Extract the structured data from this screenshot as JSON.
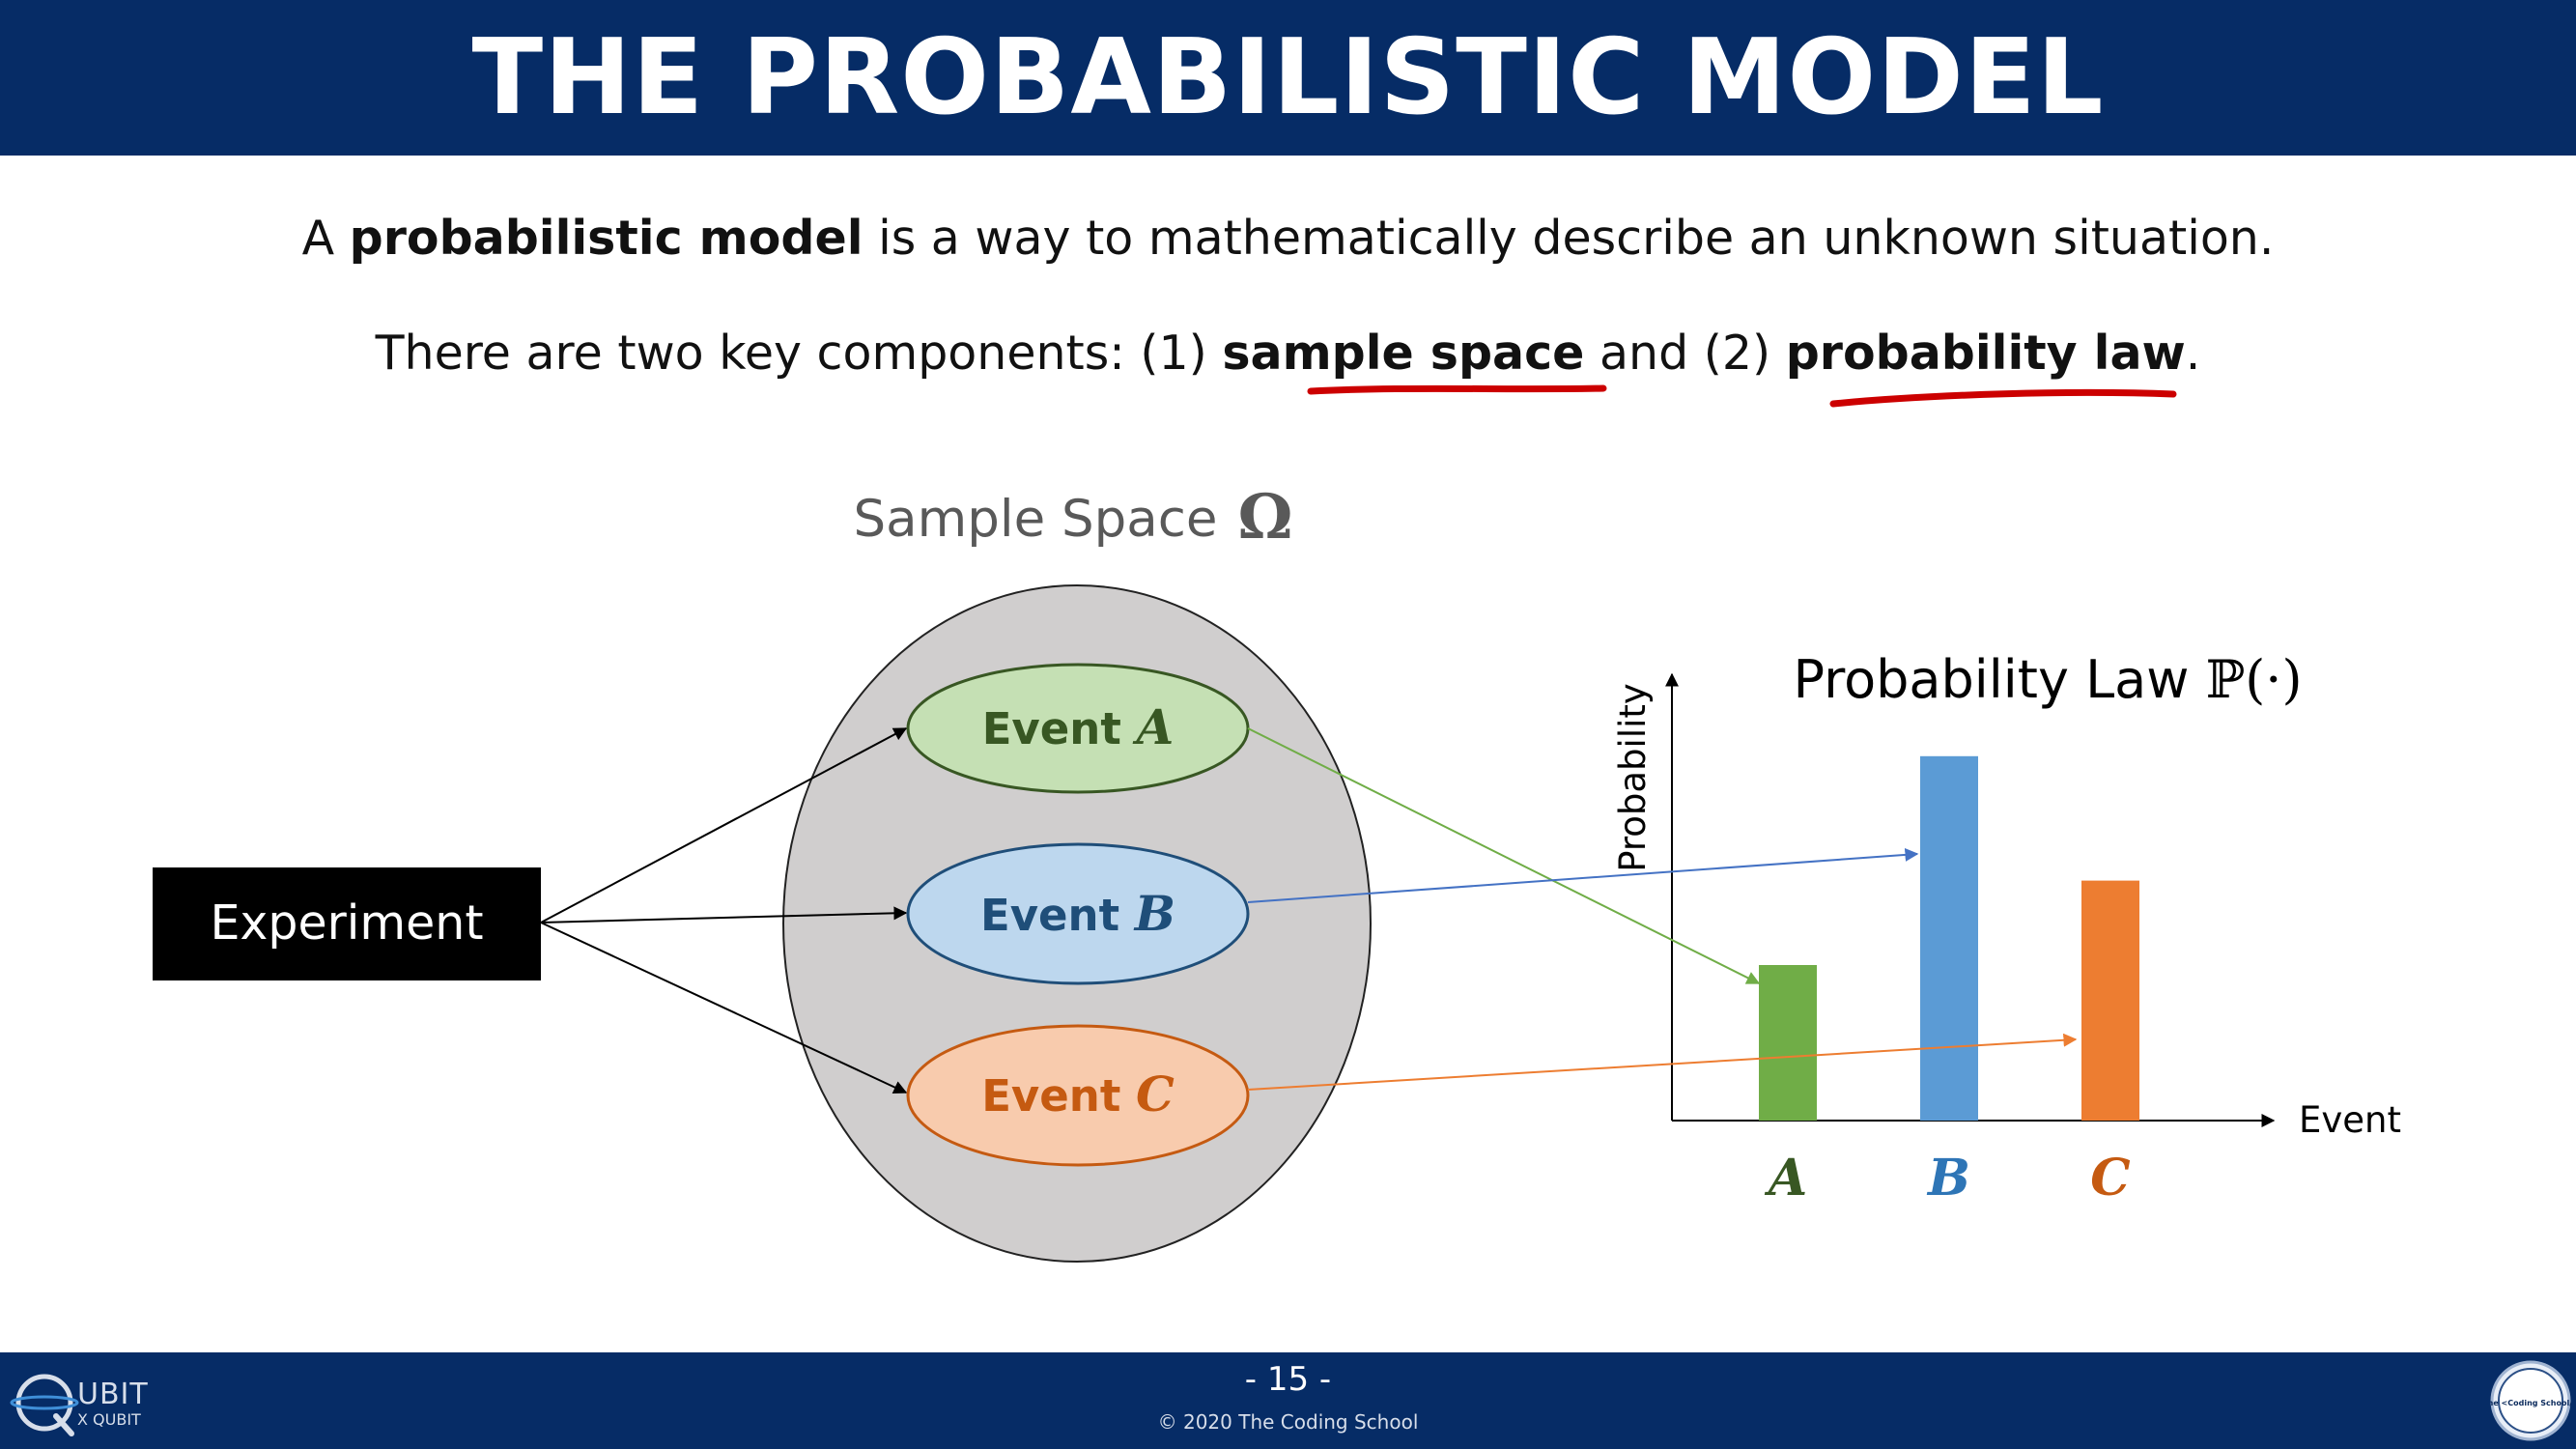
{
  "header": {
    "title": "THE PROBABILISTIC MODEL"
  },
  "intro": {
    "line1_pre": "A ",
    "line1_bold": "probabilistic model",
    "line1_post": " is a way to mathematically describe an unknown situation.",
    "line2_pre": "There are two key components: (1) ",
    "line2_bold1": "sample space",
    "line2_mid": " and (2) ",
    "line2_bold2": "probability law",
    "line2_post": "."
  },
  "diagram": {
    "experiment_label": "Experiment",
    "sample_space_label": "Sample Space",
    "omega_symbol": "Ω",
    "events": [
      {
        "label": "Event",
        "symbol": "A",
        "fill": "#c5e0b4",
        "stroke": "#385723",
        "text_color": "#385723"
      },
      {
        "label": "Event",
        "symbol": "B",
        "fill": "#bdd7ee",
        "stroke": "#1f4e79",
        "text_color": "#1f4e79"
      },
      {
        "label": "Event",
        "symbol": "C",
        "fill": "#f8cbad",
        "stroke": "#c55a11",
        "text_color": "#c55a11"
      }
    ],
    "sample_space_fill": "#d0cece",
    "arrow_colors": [
      "#70ad47",
      "#4472c4",
      "#ed7d31"
    ]
  },
  "chart_data": {
    "type": "bar",
    "title": "Probability Law",
    "title_symbol": "ℙ(·)",
    "xlabel": "Event",
    "ylabel": "Probability",
    "categories": [
      "A",
      "B",
      "C"
    ],
    "values": [
      0.35,
      0.82,
      0.54
    ],
    "colors": [
      "#70ad47",
      "#5b9bd5",
      "#ed7d31"
    ],
    "label_colors": [
      "#385723",
      "#2e75b6",
      "#c55a11"
    ],
    "ylim": [
      0,
      1
    ],
    "grid": false
  },
  "annotation": {
    "underline_color": "#cc0000"
  },
  "footer": {
    "page": "- 15 -",
    "copyright": "© 2020 The Coding School",
    "logo_left_text": "UBIT",
    "logo_left_sub": "X QUBIT",
    "logo_right_text": "The <Coding School/>"
  }
}
